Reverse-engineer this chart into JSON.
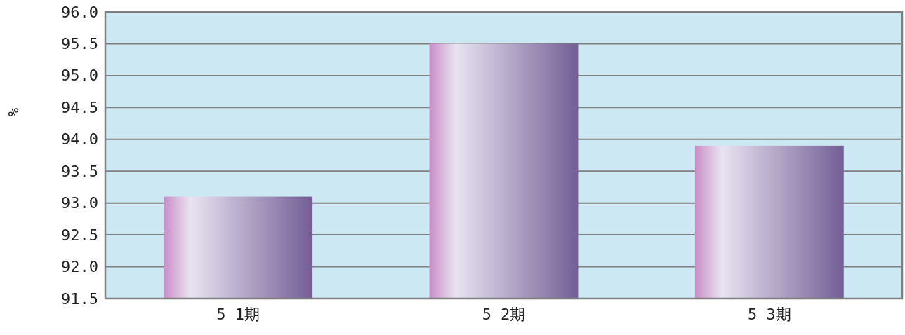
{
  "chart_data": {
    "type": "bar",
    "ylabel": "%",
    "categories": [
      "5 1期",
      "5 2期",
      "5 3期"
    ],
    "values": [
      93.1,
      95.5,
      93.9
    ],
    "color": "#8f74b8",
    "ylim": [
      91.5,
      96.0
    ],
    "yticks": [
      {
        "value": 91.5,
        "label": "91.5"
      },
      {
        "value": 92,
        "label": "92.0"
      },
      {
        "value": 92.5,
        "label": "92.5"
      },
      {
        "value": 93,
        "label": "93.0"
      },
      {
        "value": 93.5,
        "label": "93.5"
      },
      {
        "value": 94,
        "label": "94.0"
      },
      {
        "value": 94.5,
        "label": "94.5"
      },
      {
        "value": 95,
        "label": "95.0"
      },
      {
        "value": 95.5,
        "label": "95.5"
      },
      {
        "value": 96,
        "label": "96.0"
      }
    ],
    "grid": "y"
  }
}
